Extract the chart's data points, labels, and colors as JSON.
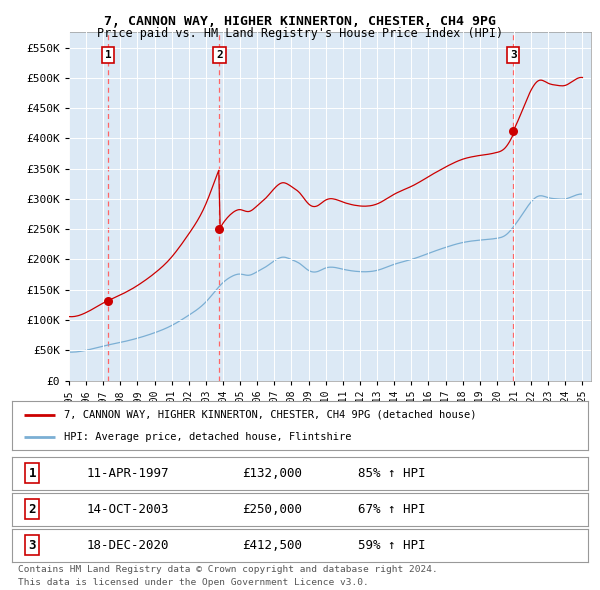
{
  "title1": "7, CANNON WAY, HIGHER KINNERTON, CHESTER, CH4 9PG",
  "title2": "Price paid vs. HM Land Registry's House Price Index (HPI)",
  "fig_bg_color": "#ffffff",
  "plot_bg_color": "#dce9f5",
  "hpi_color": "#7bafd4",
  "price_color": "#cc0000",
  "vline_color": "#ff6666",
  "ylim": [
    0,
    575000
  ],
  "yticks": [
    0,
    50000,
    100000,
    150000,
    200000,
    250000,
    300000,
    350000,
    400000,
    450000,
    500000,
    550000
  ],
  "ytick_labels": [
    "£0",
    "£50K",
    "£100K",
    "£150K",
    "£200K",
    "£250K",
    "£300K",
    "£350K",
    "£400K",
    "£450K",
    "£500K",
    "£550K"
  ],
  "xlim_start": 1995.0,
  "xlim_end": 2025.5,
  "xtick_years": [
    1995,
    1996,
    1997,
    1998,
    1999,
    2000,
    2001,
    2002,
    2003,
    2004,
    2005,
    2006,
    2007,
    2008,
    2009,
    2010,
    2011,
    2012,
    2013,
    2014,
    2015,
    2016,
    2017,
    2018,
    2019,
    2020,
    2021,
    2022,
    2023,
    2024,
    2025
  ],
  "sales": [
    {
      "num": 1,
      "date_label": "11-APR-1997",
      "year": 1997.28,
      "price": 132000,
      "pct": "85%",
      "arrow": "↑"
    },
    {
      "num": 2,
      "date_label": "14-OCT-2003",
      "year": 2003.79,
      "price": 250000,
      "pct": "67%",
      "arrow": "↑"
    },
    {
      "num": 3,
      "date_label": "18-DEC-2020",
      "year": 2020.96,
      "price": 412500,
      "pct": "59%",
      "arrow": "↑"
    }
  ],
  "legend_line1": "7, CANNON WAY, HIGHER KINNERTON, CHESTER, CH4 9PG (detached house)",
  "legend_line2": "HPI: Average price, detached house, Flintshire",
  "footer1": "Contains HM Land Registry data © Crown copyright and database right 2024.",
  "footer2": "This data is licensed under the Open Government Licence v3.0."
}
